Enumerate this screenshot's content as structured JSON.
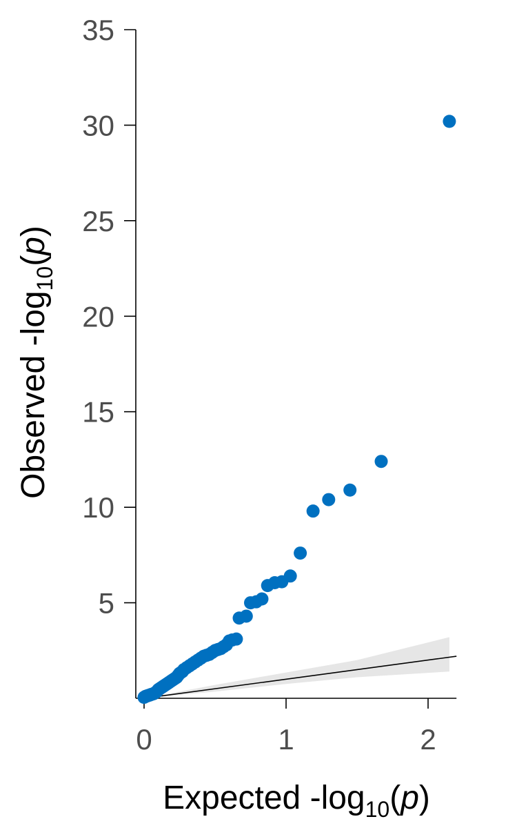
{
  "chart_data": {
    "type": "scatter",
    "title": "",
    "xlabel": {
      "prefix": "Expected -log",
      "sub": "10",
      "open": "(",
      "var": "p",
      "close": ")"
    },
    "ylabel": {
      "prefix": "Observed -log",
      "sub": "10",
      "open": "(",
      "var": "p",
      "close": ")"
    },
    "xlim": [
      -0.05,
      2.2
    ],
    "ylim": [
      0,
      35
    ],
    "xticks": [
      0,
      1,
      2
    ],
    "xtick_labels": [
      "0",
      "1",
      "2"
    ],
    "yticks": [
      5,
      10,
      15,
      20,
      25,
      30,
      35
    ],
    "ytick_labels": [
      "5",
      "10",
      "15",
      "20",
      "25",
      "30",
      "35"
    ],
    "grid": false,
    "point_color": "#0070C0",
    "band_color": "#e6e6e6",
    "line_color": "#000000",
    "reference_line": {
      "x": [
        0,
        2.2
      ],
      "y": [
        0,
        2.2
      ]
    },
    "confidence_band": {
      "x": [
        0,
        0.5,
        1.0,
        1.5,
        2.15
      ],
      "lower": [
        0,
        0.35,
        0.75,
        1.1,
        1.4
      ],
      "upper": [
        0,
        0.7,
        1.35,
        2.0,
        3.2
      ]
    },
    "points": [
      {
        "x": 0.0,
        "y": 0.05
      },
      {
        "x": 0.01,
        "y": 0.1
      },
      {
        "x": 0.02,
        "y": 0.12
      },
      {
        "x": 0.03,
        "y": 0.15
      },
      {
        "x": 0.04,
        "y": 0.17
      },
      {
        "x": 0.05,
        "y": 0.2
      },
      {
        "x": 0.06,
        "y": 0.22
      },
      {
        "x": 0.07,
        "y": 0.25
      },
      {
        "x": 0.08,
        "y": 0.3
      },
      {
        "x": 0.09,
        "y": 0.35
      },
      {
        "x": 0.1,
        "y": 0.45
      },
      {
        "x": 0.11,
        "y": 0.5
      },
      {
        "x": 0.12,
        "y": 0.55
      },
      {
        "x": 0.13,
        "y": 0.6
      },
      {
        "x": 0.14,
        "y": 0.65
      },
      {
        "x": 0.15,
        "y": 0.7
      },
      {
        "x": 0.16,
        "y": 0.75
      },
      {
        "x": 0.17,
        "y": 0.8
      },
      {
        "x": 0.18,
        "y": 0.85
      },
      {
        "x": 0.19,
        "y": 0.9
      },
      {
        "x": 0.2,
        "y": 0.95
      },
      {
        "x": 0.21,
        "y": 1.0
      },
      {
        "x": 0.22,
        "y": 1.05
      },
      {
        "x": 0.23,
        "y": 1.1
      },
      {
        "x": 0.24,
        "y": 1.2
      },
      {
        "x": 0.25,
        "y": 1.3
      },
      {
        "x": 0.26,
        "y": 1.35
      },
      {
        "x": 0.27,
        "y": 1.4
      },
      {
        "x": 0.28,
        "y": 1.5
      },
      {
        "x": 0.3,
        "y": 1.6
      },
      {
        "x": 0.32,
        "y": 1.7
      },
      {
        "x": 0.34,
        "y": 1.8
      },
      {
        "x": 0.36,
        "y": 1.9
      },
      {
        "x": 0.38,
        "y": 2.0
      },
      {
        "x": 0.4,
        "y": 2.1
      },
      {
        "x": 0.42,
        "y": 2.2
      },
      {
        "x": 0.44,
        "y": 2.25
      },
      {
        "x": 0.46,
        "y": 2.3
      },
      {
        "x": 0.48,
        "y": 2.4
      },
      {
        "x": 0.5,
        "y": 2.5
      },
      {
        "x": 0.52,
        "y": 2.55
      },
      {
        "x": 0.54,
        "y": 2.6
      },
      {
        "x": 0.56,
        "y": 2.7
      },
      {
        "x": 0.58,
        "y": 2.8
      },
      {
        "x": 0.6,
        "y": 3.0
      },
      {
        "x": 0.62,
        "y": 3.05
      },
      {
        "x": 0.65,
        "y": 3.1
      },
      {
        "x": 0.67,
        "y": 4.2
      },
      {
        "x": 0.72,
        "y": 4.3
      },
      {
        "x": 0.75,
        "y": 5.0
      },
      {
        "x": 0.79,
        "y": 5.05
      },
      {
        "x": 0.83,
        "y": 5.2
      },
      {
        "x": 0.87,
        "y": 5.9
      },
      {
        "x": 0.92,
        "y": 6.05
      },
      {
        "x": 0.97,
        "y": 6.1
      },
      {
        "x": 1.03,
        "y": 6.4
      },
      {
        "x": 1.1,
        "y": 7.6
      },
      {
        "x": 1.19,
        "y": 9.8
      },
      {
        "x": 1.3,
        "y": 10.4
      },
      {
        "x": 1.45,
        "y": 10.9
      },
      {
        "x": 1.67,
        "y": 12.4
      },
      {
        "x": 2.15,
        "y": 30.2
      }
    ]
  }
}
